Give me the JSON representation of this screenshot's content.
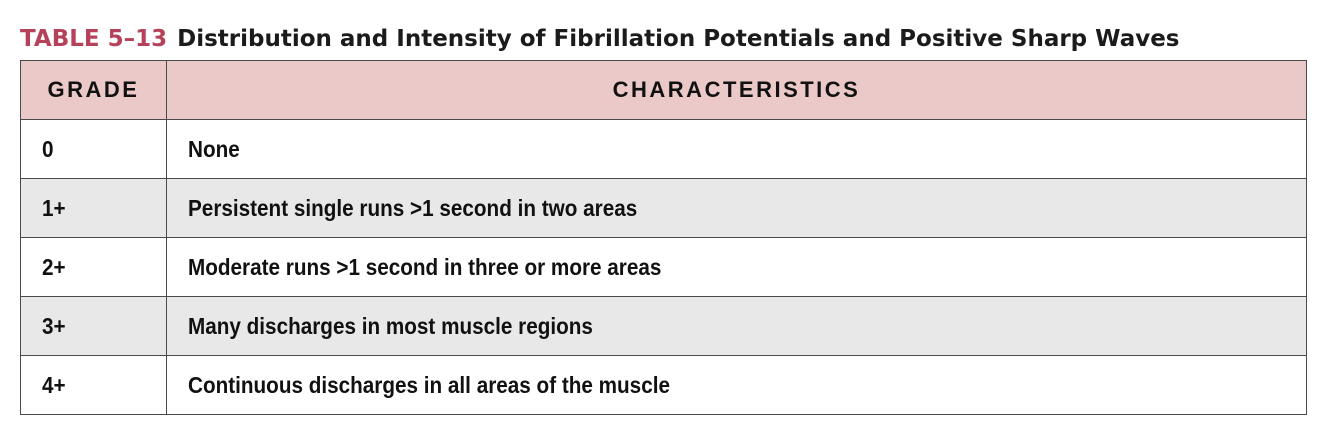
{
  "caption": {
    "label": "TABLE 5–13",
    "title": "Distribution and Intensity of Fibrillation Potentials and Positive Sharp Waves"
  },
  "table": {
    "headers": [
      "GRADE",
      "CHARACTERISTICS"
    ],
    "rows": [
      {
        "grade": "0",
        "characteristics": "None"
      },
      {
        "grade": "1+",
        "characteristics": "Persistent single runs >1 second in two areas"
      },
      {
        "grade": "2+",
        "characteristics": "Moderate runs >1 second in three or more areas"
      },
      {
        "grade": "3+",
        "characteristics": "Many discharges in most muscle regions"
      },
      {
        "grade": "4+",
        "characteristics": "Continuous discharges in all areas of the muscle"
      }
    ]
  },
  "colors": {
    "caption_label": "#b5425a",
    "header_background": "#ecc9c9",
    "shaded_row_background": "#e8e8e8",
    "border": "#4a4a4a"
  }
}
